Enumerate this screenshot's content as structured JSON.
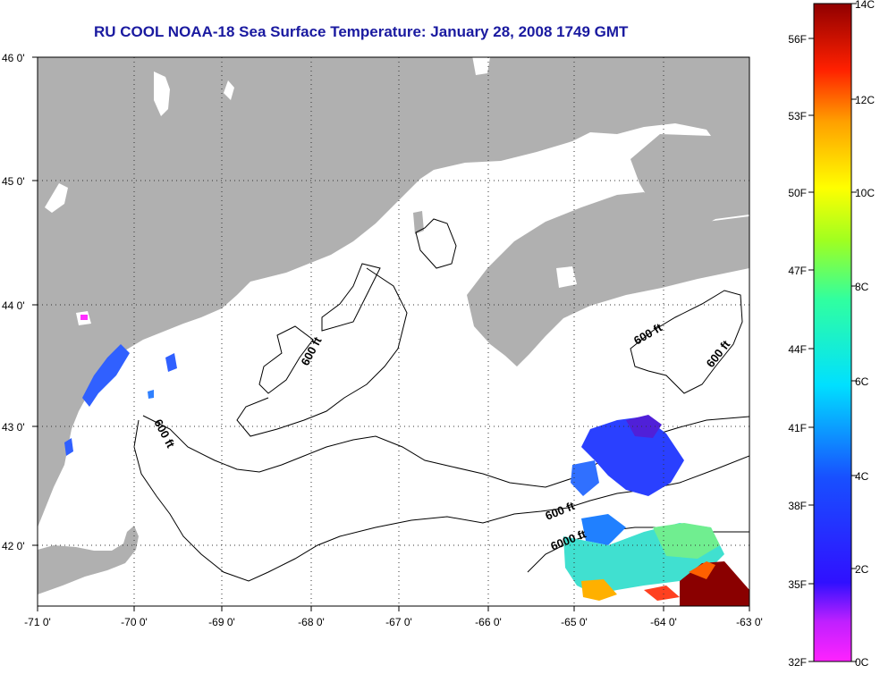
{
  "title": "RU COOL  NOAA-18  Sea Surface Temperature:  January 28, 2008 1749 GMT",
  "axes": {
    "lat_ticks": [
      "46 0'",
      "45 0'",
      "44 0'",
      "43 0'",
      "42 0'"
    ],
    "lon_ticks": [
      "-71 0'",
      "-70 0'",
      "-69 0'",
      "-68 0'",
      "-67 0'",
      "-66 0'",
      "-65 0'",
      "-64 0'",
      "-63 0'"
    ]
  },
  "contour_labels": [
    "600 ft",
    "600 ft",
    "600 ft",
    "600 ft",
    "600 ft",
    "6000 ft"
  ],
  "colorbar": {
    "celsius_ticks": [
      "14C",
      "12C",
      "10C",
      "8C",
      "6C",
      "4C",
      "2C",
      "0C"
    ],
    "fahrenheit_ticks": [
      "56F",
      "53F",
      "50F",
      "47F",
      "44F",
      "41F",
      "38F",
      "35F",
      "32F"
    ]
  },
  "colors": {
    "title": "#1a1aa0",
    "land": "#b0b0b0",
    "ocean": "#ffffff"
  }
}
